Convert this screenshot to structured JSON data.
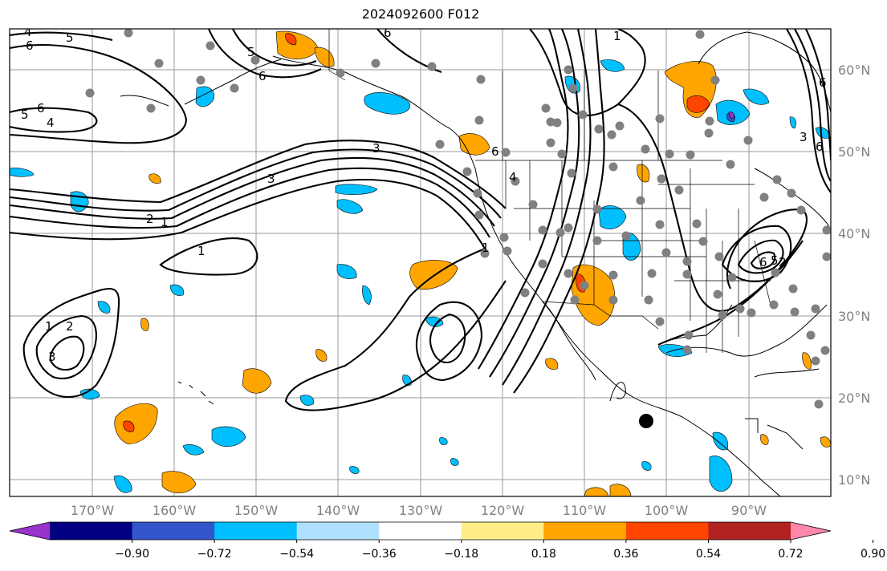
{
  "title": "2024092600 F012",
  "lat_labels": [
    "60°N",
    "50°N",
    "40°N",
    "30°N",
    "20°N",
    "10°N"
  ],
  "lon_labels": [
    "170°W",
    "160°W",
    "150°W",
    "140°W",
    "130°W",
    "120°W",
    "110°W",
    "100°W",
    "90°W"
  ],
  "colorbar": {
    "ticks": [
      "−0.90",
      "−0.72",
      "−0.54",
      "−0.36",
      "−0.18",
      "0.18",
      "0.36",
      "0.54",
      "0.72",
      "0.90"
    ],
    "colors": [
      "#9933cc",
      "#000080",
      "#3355cc",
      "#00bfff",
      "#b0e0ff",
      "#ffffff",
      "#ffee88",
      "#ffa500",
      "#ff4500",
      "#b22222",
      "#ff88aa"
    ]
  },
  "contour_labels": [
    "4",
    "5",
    "6",
    "6",
    "5",
    "6",
    "1",
    "6",
    "3",
    "5",
    "4",
    "6",
    "3",
    "2",
    "1",
    "1",
    "1",
    "2",
    "3",
    "1",
    "6",
    "4",
    "6",
    "5",
    "2",
    "3",
    "6"
  ],
  "map": {
    "lon_range": [
      -180,
      -80
    ],
    "lat_range": [
      8,
      65
    ],
    "marker": "black-circle",
    "colors": {
      "gray_dots": "#808080",
      "grid": "#9a9a9a"
    }
  }
}
